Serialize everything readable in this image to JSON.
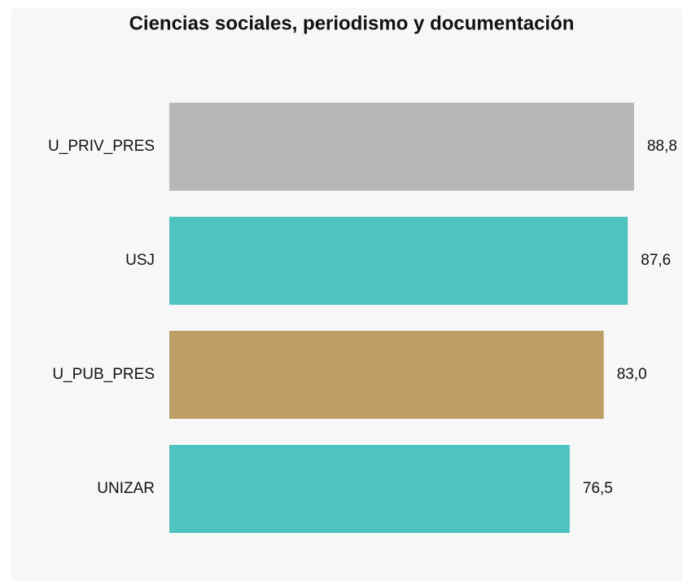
{
  "chart_data": {
    "type": "barh",
    "title": "Ciencias sociales, periodismo y documentación",
    "categories": [
      "U_PRIV_PRES",
      "USJ",
      "U_PUB_PRES",
      "UNIZAR"
    ],
    "values": [
      88.8,
      87.6,
      83.0,
      76.5
    ],
    "value_labels": [
      "88,8",
      "87,6",
      "83,0",
      "76,5"
    ],
    "colors": [
      "#b7b7b7",
      "#4fc3bf",
      "#bd9e67",
      "#4fc3bf"
    ],
    "xlim": [
      0,
      100
    ]
  }
}
